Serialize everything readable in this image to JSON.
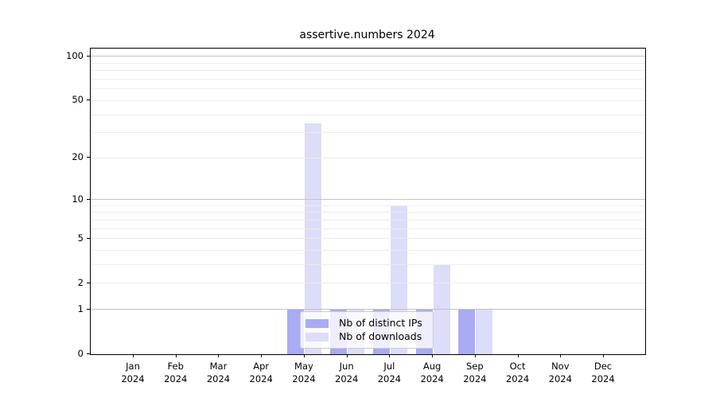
{
  "chart_data": {
    "type": "bar",
    "title": "assertive.numbers 2024",
    "categories": [
      "Jan",
      "Feb",
      "Mar",
      "Apr",
      "May",
      "Jun",
      "Jul",
      "Aug",
      "Sep",
      "Oct",
      "Nov",
      "Dec"
    ],
    "category_year": "2024",
    "series": [
      {
        "name": "Nb of distinct IPs",
        "color": "#a9abf3",
        "values": [
          0,
          0,
          0,
          0,
          1,
          1,
          1,
          1,
          1,
          0,
          0,
          0
        ]
      },
      {
        "name": "Nb of downloads",
        "color": "#dcddf9",
        "values": [
          0,
          0,
          0,
          0,
          35,
          1,
          9,
          3,
          1,
          0,
          0,
          0
        ]
      }
    ],
    "xlabel": "",
    "ylabel": "",
    "ylim": [
      0,
      100
    ],
    "y_scale": "log10(value+1)",
    "y_tick_values": [
      0,
      1,
      2,
      5,
      10,
      20,
      50,
      100
    ],
    "y_major_gridlines": [
      1,
      10,
      100
    ],
    "y_minor_gridlines": [
      2,
      3,
      4,
      5,
      6,
      7,
      8,
      9,
      20,
      30,
      40,
      50,
      60,
      70,
      80,
      90
    ],
    "grid": true,
    "legend_position": "lower center",
    "colors": {
      "distinct_ips_bar": "#a9abf3",
      "downloads_bar": "#dcddf9",
      "grid_major": "#c2c2c2",
      "grid_minor": "#ececec",
      "axis": "#000000",
      "background": "#ffffff"
    }
  }
}
